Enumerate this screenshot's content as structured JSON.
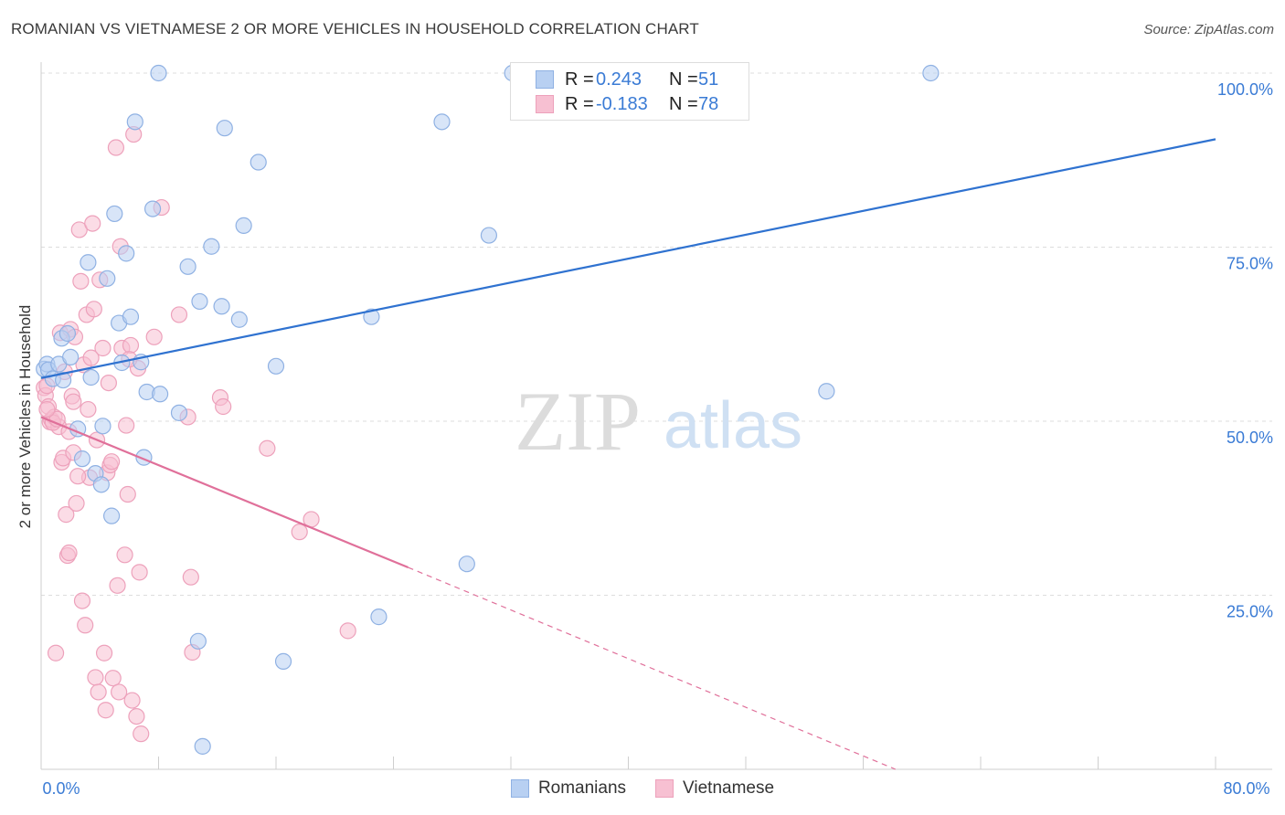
{
  "header": {
    "title": "ROMANIAN VS VIETNAMESE 2 OR MORE VEHICLES IN HOUSEHOLD CORRELATION CHART",
    "source": "Source: ZipAtlas.com"
  },
  "watermark": {
    "zip": "ZIP",
    "atlas": "atlas"
  },
  "legend": {
    "rows": [
      {
        "r_label": "R =",
        "r_value": "0.243",
        "n_label": "N =",
        "n_value": "51"
      },
      {
        "r_label": "R =",
        "r_value": "-0.183",
        "n_label": "N =",
        "n_value": "78"
      }
    ],
    "series_names": [
      "Romanians",
      "Vietnamese"
    ]
  },
  "colors": {
    "romanians_fill": "#b8d0f2",
    "romanians_stroke": "#8fb1e3",
    "romanians_line": "#2f72d0",
    "vietnamese_fill": "#f7c0d2",
    "vietnamese_stroke": "#eda1bb",
    "vietnamese_line": "#e0709a",
    "axis_text": "#3a7bd5",
    "grid": "#dddddd"
  },
  "chart_data": {
    "type": "scatter",
    "title": "ROMANIAN VS VIETNAMESE 2 OR MORE VEHICLES IN HOUSEHOLD CORRELATION CHART",
    "xlabel": "",
    "ylabel": "2 or more Vehicles in Household",
    "xlim": [
      0,
      80
    ],
    "ylim": [
      0,
      100
    ],
    "x_tick_labels": [
      "0.0%",
      "80.0%"
    ],
    "y_tick_labels": [
      "100.0%",
      "75.0%",
      "50.0%",
      "25.0%"
    ],
    "y_ticks": [
      100,
      75,
      50,
      25
    ],
    "grid": true,
    "legend": "top-center",
    "series": [
      {
        "name": "Romanians",
        "R": 0.243,
        "N": 51,
        "trend": {
          "x": [
            0,
            80
          ],
          "y": [
            56.2,
            90.5
          ],
          "dashed_from": null
        },
        "points": [
          [
            0.2,
            57.5
          ],
          [
            0.4,
            58.2
          ],
          [
            0.5,
            57.4
          ],
          [
            0.8,
            56.1
          ],
          [
            1.2,
            58.2
          ],
          [
            1.4,
            61.9
          ],
          [
            1.5,
            55.9
          ],
          [
            1.8,
            62.6
          ],
          [
            2.0,
            59.2
          ],
          [
            2.5,
            48.9
          ],
          [
            2.8,
            44.6
          ],
          [
            3.2,
            72.8
          ],
          [
            3.4,
            56.3
          ],
          [
            3.7,
            42.5
          ],
          [
            4.1,
            40.9
          ],
          [
            4.2,
            49.3
          ],
          [
            4.5,
            70.5
          ],
          [
            4.8,
            36.4
          ],
          [
            5.0,
            79.8
          ],
          [
            5.3,
            64.1
          ],
          [
            5.5,
            58.4
          ],
          [
            5.8,
            74.1
          ],
          [
            6.1,
            65.0
          ],
          [
            6.4,
            93.0
          ],
          [
            6.8,
            58.5
          ],
          [
            7.0,
            44.8
          ],
          [
            7.2,
            54.2
          ],
          [
            7.6,
            80.5
          ],
          [
            8.0,
            100.0
          ],
          [
            8.1,
            53.9
          ],
          [
            9.4,
            51.2
          ],
          [
            10.0,
            72.2
          ],
          [
            10.7,
            18.4
          ],
          [
            10.8,
            67.2
          ],
          [
            11.0,
            3.3
          ],
          [
            11.6,
            75.1
          ],
          [
            12.3,
            66.5
          ],
          [
            12.5,
            92.1
          ],
          [
            13.5,
            64.6
          ],
          [
            13.8,
            78.1
          ],
          [
            14.8,
            87.2
          ],
          [
            16.5,
            15.5
          ],
          [
            16.0,
            57.9
          ],
          [
            22.5,
            65.0
          ],
          [
            23.0,
            21.9
          ],
          [
            27.3,
            93.0
          ],
          [
            29.0,
            29.5
          ],
          [
            32.1,
            100.0
          ],
          [
            60.6,
            100.0
          ],
          [
            53.5,
            54.3
          ],
          [
            30.5,
            76.7
          ]
        ]
      },
      {
        "name": "Vietnamese",
        "R": -0.183,
        "N": 78,
        "trend": {
          "x": [
            0,
            25
          ],
          "y": [
            50.6,
            29.0
          ],
          "dashed_to": [
            58.2,
            0
          ]
        },
        "points": [
          [
            0.2,
            54.8
          ],
          [
            0.3,
            53.7
          ],
          [
            0.4,
            55.1
          ],
          [
            0.5,
            52.1
          ],
          [
            0.6,
            49.9
          ],
          [
            0.7,
            50.2
          ],
          [
            0.9,
            50.6
          ],
          [
            1.0,
            16.7
          ],
          [
            1.2,
            49.2
          ],
          [
            1.3,
            62.7
          ],
          [
            1.4,
            44.1
          ],
          [
            1.5,
            44.7
          ],
          [
            1.6,
            57.1
          ],
          [
            1.7,
            36.6
          ],
          [
            1.8,
            30.7
          ],
          [
            1.9,
            31.1
          ],
          [
            2.0,
            63.2
          ],
          [
            2.1,
            53.6
          ],
          [
            2.2,
            45.5
          ],
          [
            2.3,
            62.1
          ],
          [
            2.4,
            38.2
          ],
          [
            2.6,
            77.5
          ],
          [
            2.7,
            70.1
          ],
          [
            2.8,
            24.2
          ],
          [
            2.9,
            58.1
          ],
          [
            3.0,
            20.7
          ],
          [
            3.1,
            65.3
          ],
          [
            3.2,
            51.7
          ],
          [
            3.3,
            41.9
          ],
          [
            3.5,
            78.4
          ],
          [
            3.6,
            66.1
          ],
          [
            3.7,
            13.2
          ],
          [
            3.9,
            11.1
          ],
          [
            4.0,
            70.3
          ],
          [
            4.2,
            60.5
          ],
          [
            4.3,
            16.7
          ],
          [
            4.4,
            8.5
          ],
          [
            4.5,
            42.6
          ],
          [
            4.6,
            55.5
          ],
          [
            4.7,
            43.7
          ],
          [
            4.9,
            13.1
          ],
          [
            5.1,
            89.3
          ],
          [
            5.2,
            26.4
          ],
          [
            5.3,
            11.1
          ],
          [
            5.4,
            75.1
          ],
          [
            5.5,
            60.5
          ],
          [
            5.7,
            30.8
          ],
          [
            5.8,
            49.4
          ],
          [
            5.9,
            39.5
          ],
          [
            6.1,
            60.9
          ],
          [
            6.2,
            9.9
          ],
          [
            6.3,
            91.2
          ],
          [
            6.5,
            7.6
          ],
          [
            6.6,
            57.6
          ],
          [
            6.7,
            28.3
          ],
          [
            6.8,
            5.1
          ],
          [
            7.7,
            62.1
          ],
          [
            8.2,
            80.7
          ],
          [
            9.4,
            65.3
          ],
          [
            10.0,
            50.6
          ],
          [
            10.2,
            27.6
          ],
          [
            10.3,
            16.8
          ],
          [
            12.2,
            53.4
          ],
          [
            12.4,
            52.1
          ],
          [
            15.4,
            46.1
          ],
          [
            17.6,
            34.1
          ],
          [
            18.4,
            35.9
          ],
          [
            20.9,
            19.9
          ],
          [
            0.8,
            49.8
          ],
          [
            1.1,
            50.3
          ],
          [
            2.5,
            42.1
          ],
          [
            3.8,
            47.3
          ],
          [
            4.8,
            44.2
          ],
          [
            1.9,
            48.5
          ],
          [
            2.2,
            52.8
          ],
          [
            0.4,
            51.7
          ],
          [
            3.4,
            59.1
          ],
          [
            6.0,
            58.9
          ]
        ]
      }
    ]
  }
}
